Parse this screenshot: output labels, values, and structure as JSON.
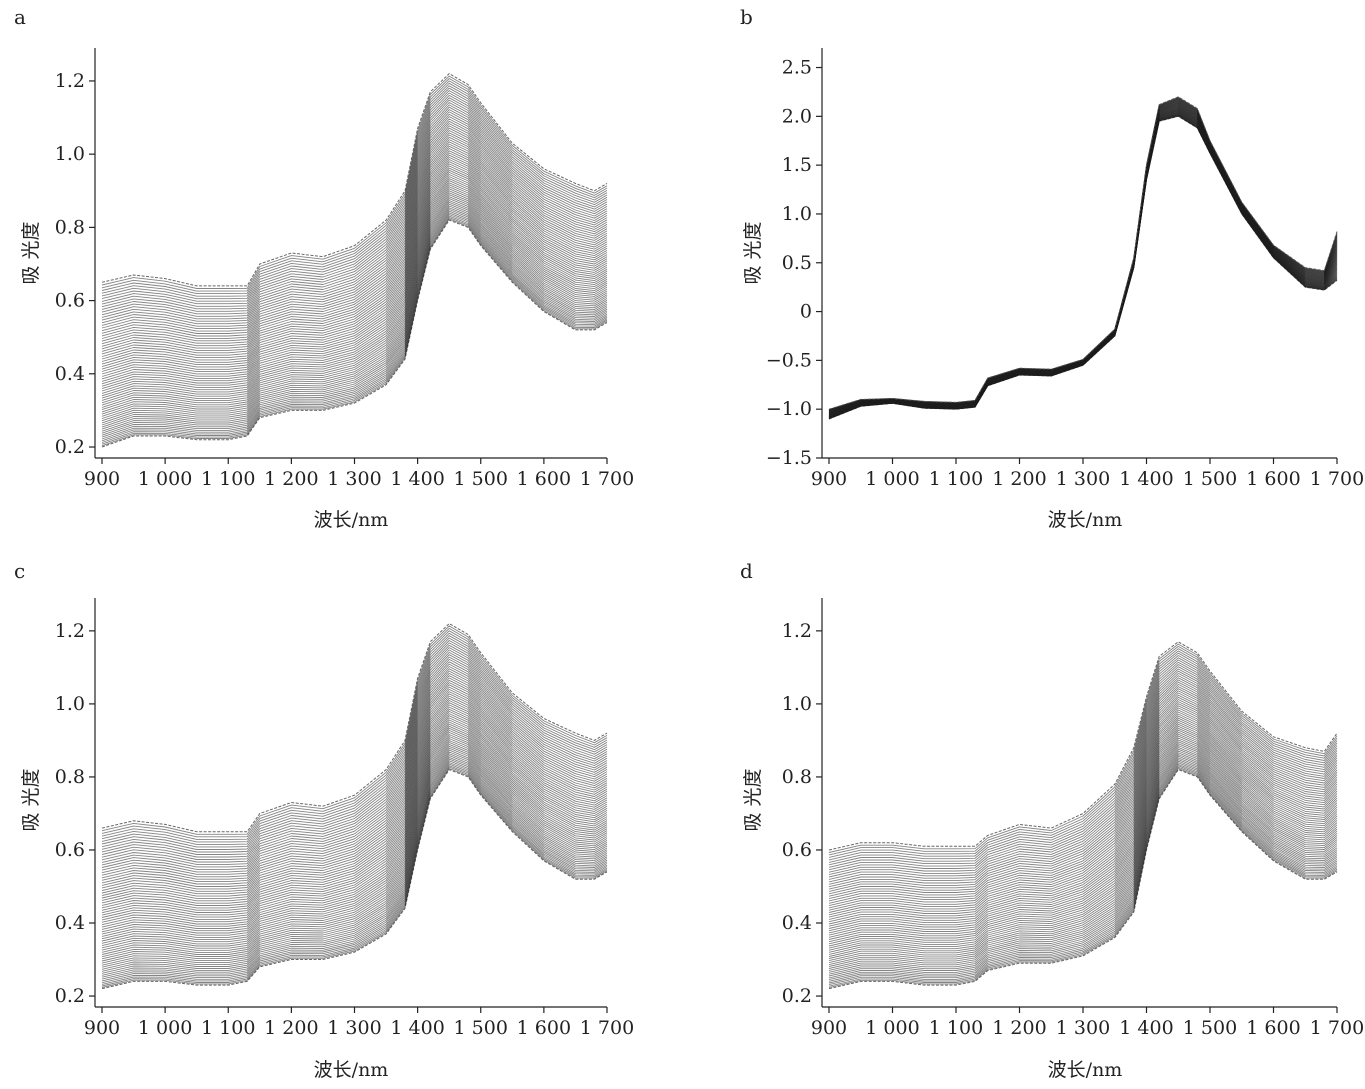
{
  "chart_data": [
    {
      "panel": "a",
      "type": "line",
      "xlabel": "波长/nm",
      "ylabel": "吸 光度",
      "xlim": [
        900,
        1700
      ],
      "ylim": [
        0.17,
        1.29
      ],
      "xticks": [
        900,
        1000,
        1100,
        1200,
        1300,
        1400,
        1500,
        1600,
        1700
      ],
      "xtick_labels": [
        "900",
        "1 000",
        "1 100",
        "1 200",
        "1 300",
        "1 400",
        "1 500",
        "1 600",
        "1 700"
      ],
      "yticks": [
        0.2,
        0.4,
        0.6,
        0.8,
        1.0,
        1.2
      ],
      "ytick_labels": [
        "0.2",
        "0.4",
        "0.6",
        "0.8",
        "1.0",
        "1.2"
      ],
      "series_count": 70,
      "wavelengths": [
        900,
        950,
        1000,
        1050,
        1100,
        1130,
        1150,
        1200,
        1250,
        1300,
        1350,
        1380,
        1400,
        1420,
        1450,
        1480,
        1500,
        1550,
        1600,
        1650,
        1680,
        1700
      ],
      "lower_envelope": [
        0.2,
        0.23,
        0.23,
        0.22,
        0.22,
        0.23,
        0.28,
        0.3,
        0.3,
        0.32,
        0.37,
        0.44,
        0.6,
        0.74,
        0.82,
        0.8,
        0.75,
        0.65,
        0.57,
        0.52,
        0.52,
        0.54
      ],
      "upper_envelope": [
        0.65,
        0.67,
        0.66,
        0.64,
        0.64,
        0.64,
        0.7,
        0.73,
        0.72,
        0.75,
        0.82,
        0.9,
        1.07,
        1.17,
        1.22,
        1.19,
        1.14,
        1.03,
        0.96,
        0.92,
        0.9,
        0.92
      ]
    },
    {
      "panel": "b",
      "type": "line",
      "xlabel": "波长/nm",
      "ylabel": "吸 光度",
      "xlim": [
        900,
        1700
      ],
      "ylim": [
        -1.5,
        2.7
      ],
      "xticks": [
        900,
        1000,
        1100,
        1200,
        1300,
        1400,
        1500,
        1600,
        1700
      ],
      "xtick_labels": [
        "900",
        "1 000",
        "1 100",
        "1 200",
        "1 300",
        "1 400",
        "1 500",
        "1 600",
        "1 700"
      ],
      "yticks": [
        -1.5,
        -1.0,
        -0.5,
        0,
        0.5,
        1.0,
        1.5,
        2.0,
        2.5
      ],
      "ytick_labels": [
        "−1.5",
        "−1.0",
        "−0.5",
        "0",
        "0.5",
        "1.0",
        "1.5",
        "2.0",
        "2.5"
      ],
      "series_count": 60,
      "wavelengths": [
        900,
        950,
        1000,
        1050,
        1100,
        1130,
        1150,
        1200,
        1250,
        1300,
        1350,
        1380,
        1400,
        1420,
        1450,
        1480,
        1500,
        1550,
        1600,
        1650,
        1680,
        1700
      ],
      "lower_envelope": [
        -1.1,
        -0.97,
        -0.94,
        -0.99,
        -1.0,
        -0.98,
        -0.76,
        -0.65,
        -0.66,
        -0.55,
        -0.25,
        0.45,
        1.35,
        1.95,
        2.0,
        1.88,
        1.62,
        1.0,
        0.55,
        0.25,
        0.22,
        0.32
      ],
      "upper_envelope": [
        -1.0,
        -0.9,
        -0.89,
        -0.92,
        -0.93,
        -0.91,
        -0.68,
        -0.58,
        -0.59,
        -0.49,
        -0.18,
        0.55,
        1.5,
        2.12,
        2.2,
        2.08,
        1.75,
        1.12,
        0.68,
        0.45,
        0.42,
        0.82
      ]
    },
    {
      "panel": "c",
      "type": "line",
      "xlabel": "波长/nm",
      "ylabel": "吸 光度",
      "xlim": [
        900,
        1700
      ],
      "ylim": [
        0.17,
        1.29
      ],
      "xticks": [
        900,
        1000,
        1100,
        1200,
        1300,
        1400,
        1500,
        1600,
        1700
      ],
      "xtick_labels": [
        "900",
        "1 000",
        "1 100",
        "1 200",
        "1 300",
        "1 400",
        "1 500",
        "1 600",
        "1 700"
      ],
      "yticks": [
        0.2,
        0.4,
        0.6,
        0.8,
        1.0,
        1.2
      ],
      "ytick_labels": [
        "0.2",
        "0.4",
        "0.6",
        "0.8",
        "1.0",
        "1.2"
      ],
      "series_count": 70,
      "wavelengths": [
        900,
        950,
        1000,
        1050,
        1100,
        1130,
        1150,
        1200,
        1250,
        1300,
        1350,
        1380,
        1400,
        1420,
        1450,
        1480,
        1500,
        1550,
        1600,
        1650,
        1680,
        1700
      ],
      "lower_envelope": [
        0.22,
        0.24,
        0.24,
        0.23,
        0.23,
        0.24,
        0.28,
        0.3,
        0.3,
        0.32,
        0.37,
        0.44,
        0.6,
        0.74,
        0.82,
        0.8,
        0.75,
        0.65,
        0.57,
        0.52,
        0.52,
        0.54
      ],
      "upper_envelope": [
        0.66,
        0.68,
        0.67,
        0.65,
        0.65,
        0.65,
        0.7,
        0.73,
        0.72,
        0.75,
        0.82,
        0.9,
        1.07,
        1.17,
        1.22,
        1.19,
        1.14,
        1.03,
        0.96,
        0.92,
        0.9,
        0.92
      ]
    },
    {
      "panel": "d",
      "type": "line",
      "xlabel": "波长/nm",
      "ylabel": "吸 光度",
      "xlim": [
        900,
        1700
      ],
      "ylim": [
        0.17,
        1.29
      ],
      "xticks": [
        900,
        1000,
        1100,
        1200,
        1300,
        1400,
        1500,
        1600,
        1700
      ],
      "xtick_labels": [
        "900",
        "1 000",
        "1 100",
        "1 200",
        "1 300",
        "1 400",
        "1 500",
        "1 600",
        "1 700"
      ],
      "yticks": [
        0.2,
        0.4,
        0.6,
        0.8,
        1.0,
        1.2
      ],
      "ytick_labels": [
        "0.2",
        "0.4",
        "0.6",
        "0.8",
        "1.0",
        "1.2"
      ],
      "series_count": 65,
      "wavelengths": [
        900,
        950,
        1000,
        1050,
        1100,
        1130,
        1150,
        1200,
        1250,
        1300,
        1350,
        1380,
        1400,
        1420,
        1450,
        1480,
        1500,
        1550,
        1600,
        1650,
        1680,
        1700
      ],
      "lower_envelope": [
        0.22,
        0.24,
        0.24,
        0.23,
        0.23,
        0.24,
        0.27,
        0.29,
        0.29,
        0.31,
        0.36,
        0.43,
        0.6,
        0.74,
        0.82,
        0.8,
        0.75,
        0.65,
        0.57,
        0.52,
        0.52,
        0.54
      ],
      "upper_envelope": [
        0.6,
        0.62,
        0.62,
        0.61,
        0.61,
        0.61,
        0.64,
        0.67,
        0.66,
        0.7,
        0.78,
        0.88,
        1.02,
        1.13,
        1.17,
        1.14,
        1.09,
        0.98,
        0.91,
        0.88,
        0.87,
        0.92
      ]
    }
  ]
}
